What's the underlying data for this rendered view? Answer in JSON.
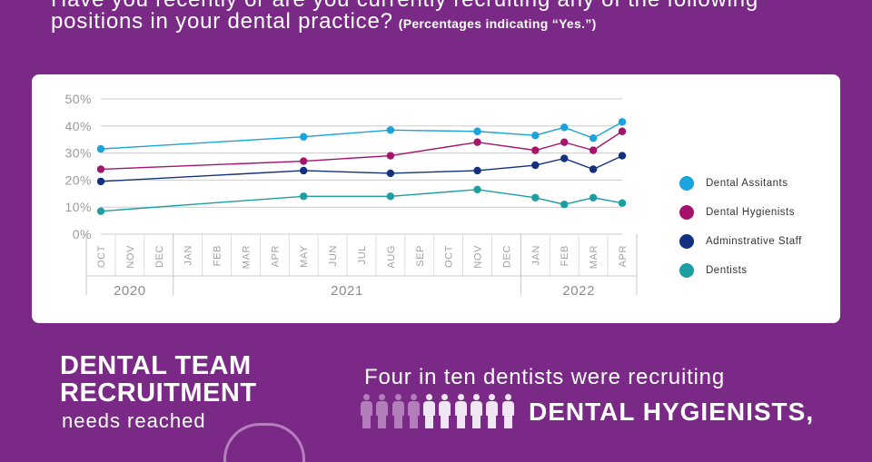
{
  "question": {
    "line1": "Have you recently or are you currently recruiting any of the following",
    "line2": "positions in your dental practice?",
    "note": "(Percentages indicating “Yes.”)"
  },
  "chart_data": {
    "type": "line",
    "x": [
      "OCT",
      "NOV",
      "DEC",
      "JAN",
      "FEB",
      "MAR",
      "APR",
      "MAY",
      "JUN",
      "JUL",
      "AUG",
      "SEP",
      "OCT",
      "NOV",
      "DEC",
      "JAN",
      "FEB",
      "MAR",
      "APR"
    ],
    "years": [
      {
        "label": "2020",
        "from": 0,
        "to": 2
      },
      {
        "label": "2021",
        "from": 3,
        "to": 14
      },
      {
        "label": "2022",
        "from": 15,
        "to": 18
      }
    ],
    "yticks": [
      "0%",
      "10%",
      "20%",
      "30%",
      "40%",
      "50%"
    ],
    "ylim": [
      0,
      50
    ],
    "grid": true,
    "legend_position": "right",
    "series": [
      {
        "name": "Dental Assitants",
        "color": "#1aa3dc",
        "points": [
          [
            0,
            31.5
          ],
          [
            7,
            36
          ],
          [
            10,
            38.5
          ],
          [
            13,
            38
          ],
          [
            15,
            36.5
          ],
          [
            16,
            39.5
          ],
          [
            17,
            35.5
          ],
          [
            18,
            41.5
          ]
        ]
      },
      {
        "name": "Dental Hygienists",
        "color": "#a6136d",
        "points": [
          [
            0,
            24
          ],
          [
            7,
            27
          ],
          [
            10,
            29
          ],
          [
            13,
            34
          ],
          [
            15,
            31
          ],
          [
            16,
            34
          ],
          [
            17,
            31
          ],
          [
            18,
            38
          ]
        ]
      },
      {
        "name": "Adminstrative Staff",
        "color": "#12307e",
        "points": [
          [
            0,
            19.5
          ],
          [
            7,
            23.5
          ],
          [
            10,
            22.5
          ],
          [
            13,
            23.5
          ],
          [
            15,
            25.5
          ],
          [
            16,
            28
          ],
          [
            17,
            24
          ],
          [
            18,
            29
          ]
        ]
      },
      {
        "name": "Dentists",
        "color": "#1d9ea3",
        "points": [
          [
            0,
            8.5
          ],
          [
            7,
            14
          ],
          [
            10,
            14
          ],
          [
            13,
            16.5
          ],
          [
            15,
            13.5
          ],
          [
            16,
            11
          ],
          [
            17,
            13.5
          ],
          [
            18,
            11.5
          ]
        ]
      }
    ]
  },
  "bottom": {
    "team_title": "DENTAL TEAM RECRUITMENT",
    "needs": "needs reached",
    "four_in_ten": "Four in ten dentists were recruiting",
    "hygienists": "DENTAL HYGIENISTS,",
    "people_highlighted": 4,
    "people_total": 10,
    "icon": "person-icon"
  }
}
